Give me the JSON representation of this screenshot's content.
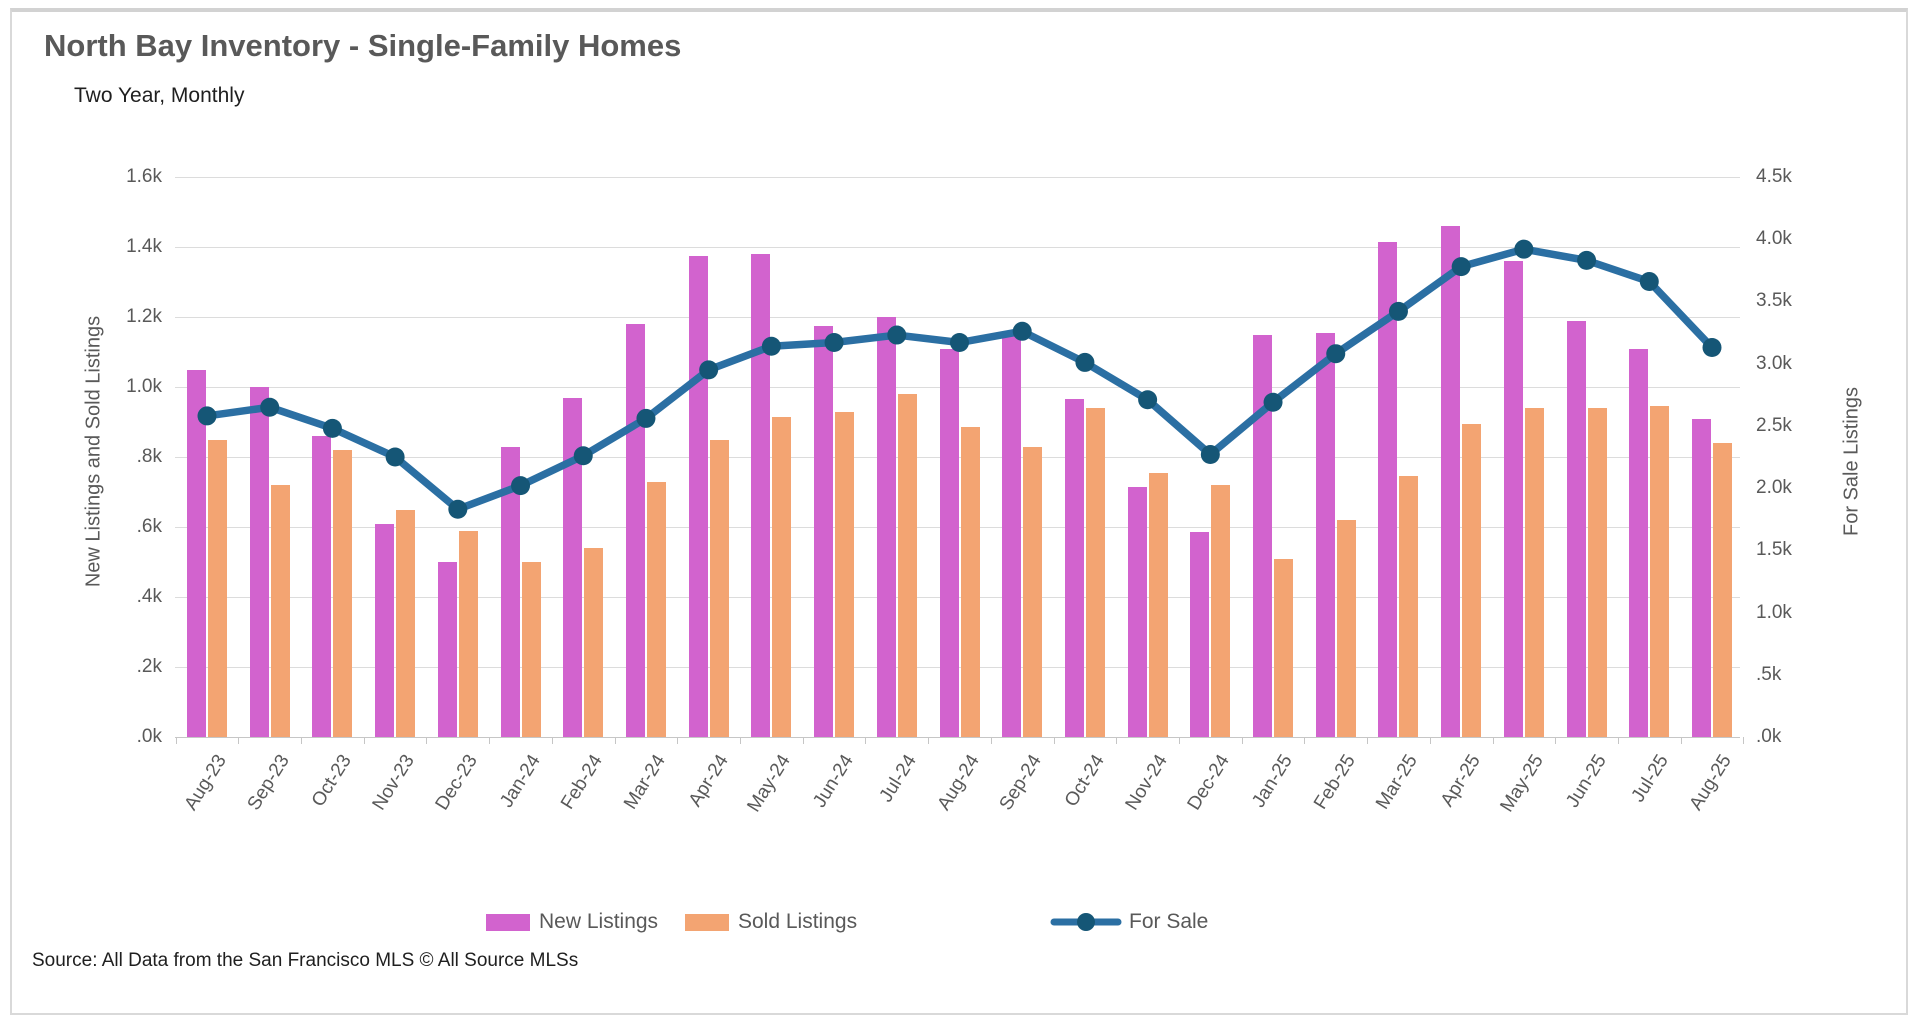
{
  "header": {
    "title": "North Bay Inventory - Single-Family Homes",
    "subtitle": "Two Year, Monthly"
  },
  "source": "Source: All Data from the San Francisco MLS © All Source MLSs",
  "colors": {
    "new_listings": "#d263ce",
    "sold_listings": "#f3a472",
    "for_sale_line": "#2b6fa3",
    "for_sale_marker": "#155676",
    "gridline": "#dcdcdc",
    "text_gray": "#595959"
  },
  "legend": [
    {
      "label": "New Listings",
      "type": "bar",
      "color": "#d263ce"
    },
    {
      "label": "Sold Listings",
      "type": "bar",
      "color": "#f3a472"
    },
    {
      "label": "For Sale",
      "type": "line",
      "color": "#2b6fa3",
      "marker_color": "#155676"
    }
  ],
  "chart_data": {
    "type": "bar",
    "subtype": "grouped bars with secondary-axis line",
    "title": "North Bay Inventory - Single-Family Homes",
    "subtitle": "Two Year, Monthly",
    "grid": true,
    "legend_position": "bottom",
    "categories": [
      "Aug-23",
      "Sep-23",
      "Oct-23",
      "Nov-23",
      "Dec-23",
      "Jan-24",
      "Feb-24",
      "Mar-24",
      "Apr-24",
      "May-24",
      "Jun-24",
      "Jul-24",
      "Aug-24",
      "Sep-24",
      "Oct-24",
      "Nov-24",
      "Dec-24",
      "Jan-25",
      "Feb-25",
      "Mar-25",
      "Apr-25",
      "May-25",
      "Jun-25",
      "Jul-25",
      "Aug-25"
    ],
    "left_axis": {
      "title": "New Listings and Sold Listings",
      "min": 0,
      "max": 1600,
      "tick_labels": [
        "1.6k",
        "1.4k",
        "1.2k",
        "1.0k",
        ".8k",
        ".6k",
        ".4k",
        ".2k",
        ".0k"
      ]
    },
    "right_axis": {
      "title": "For Sale Listings",
      "min": 0,
      "max": 4500,
      "tick_labels": [
        "4.5k",
        "4.0k",
        "3.5k",
        "3.0k",
        "2.5k",
        "2.0k",
        "1.5k",
        "1.0k",
        ".5k",
        ".0k"
      ]
    },
    "series": [
      {
        "name": "New Listings",
        "type": "bar",
        "axis": "left",
        "color": "#d263ce",
        "values": [
          1050,
          1000,
          860,
          610,
          500,
          830,
          970,
          1180,
          1375,
          1380,
          1175,
          1200,
          1110,
          1150,
          965,
          715,
          585,
          1150,
          1155,
          1415,
          1460,
          1360,
          1190,
          1110,
          910
        ]
      },
      {
        "name": "Sold Listings",
        "type": "bar",
        "axis": "left",
        "color": "#f3a472",
        "values": [
          850,
          720,
          820,
          650,
          590,
          500,
          540,
          730,
          850,
          915,
          930,
          980,
          885,
          830,
          940,
          755,
          720,
          510,
          620,
          745,
          895,
          940,
          940,
          945,
          840
        ]
      },
      {
        "name": "For Sale",
        "type": "line",
        "axis": "right",
        "color": "#2b6fa3",
        "marker_color": "#155676",
        "values": [
          2580,
          2650,
          2480,
          2250,
          1830,
          2020,
          2260,
          2560,
          2950,
          3140,
          3170,
          3230,
          3170,
          3260,
          3010,
          2710,
          2270,
          2690,
          3080,
          3420,
          3780,
          3920,
          3830,
          3660,
          3130
        ]
      }
    ]
  }
}
